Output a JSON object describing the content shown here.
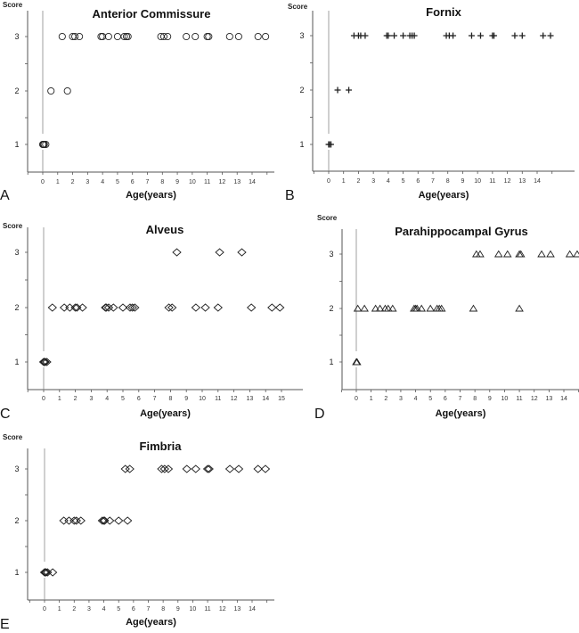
{
  "chart_data": [
    {
      "type": "scatter",
      "panel": "A",
      "title": "Anterior Commissure",
      "xlabel": "Age(years)",
      "ylabel": "Score",
      "marker": "circle",
      "xlim": [
        -1,
        15
      ],
      "xticks": [
        0,
        1,
        2,
        3,
        4,
        5,
        6,
        7,
        8,
        9,
        10,
        11,
        12,
        13,
        14
      ],
      "yticks": [
        1,
        2,
        3
      ],
      "points": {
        "1": [
          0,
          0.05,
          0.1,
          0.2
        ],
        "2": [
          0.55,
          1.65
        ],
        "3": [
          1.3,
          2.0,
          2.15,
          2.45,
          3.9,
          4.0,
          4.4,
          5.0,
          5.45,
          5.6,
          5.7,
          7.9,
          8.1,
          8.35,
          9.6,
          10.2,
          11.0,
          11.1,
          12.5,
          13.1,
          14.4,
          14.9
        ]
      }
    },
    {
      "type": "scatter",
      "panel": "B",
      "title": "Fornix",
      "xlabel": "Age(years)",
      "ylabel": "Score",
      "marker": "plus",
      "xlim": [
        -1,
        15
      ],
      "xticks": [
        0,
        1,
        2,
        3,
        4,
        5,
        6,
        7,
        8,
        9,
        10,
        11,
        12,
        13,
        14
      ],
      "yticks": [
        1,
        2,
        3
      ],
      "points": {
        "1": [
          0,
          0.05,
          0.15
        ],
        "2": [
          0.6,
          1.35
        ],
        "3": [
          1.7,
          2.0,
          2.15,
          2.45,
          3.9,
          4.0,
          4.4,
          5.0,
          5.45,
          5.6,
          5.75,
          7.9,
          8.1,
          8.35,
          9.6,
          10.2,
          11.0,
          11.1,
          12.5,
          13.0,
          14.4,
          14.9
        ]
      }
    },
    {
      "type": "scatter",
      "panel": "C",
      "title": "Alveus",
      "xlabel": "Age(years)",
      "ylabel": "Score",
      "marker": "diamond",
      "xlim": [
        -1,
        15.2
      ],
      "xticks": [
        0,
        1,
        2,
        3,
        4,
        5,
        6,
        7,
        8,
        9,
        10,
        11,
        12,
        13,
        14,
        15
      ],
      "yticks": [
        1,
        2,
        3
      ],
      "points": {
        "1": [
          0,
          0.05,
          0.1,
          0.2
        ],
        "2": [
          0.55,
          1.3,
          1.65,
          2.0,
          2.1,
          2.45,
          3.9,
          3.95,
          4.1,
          4.4,
          5.0,
          5.45,
          5.6,
          5.75,
          7.9,
          8.1,
          9.6,
          10.2,
          11.0,
          13.1,
          14.4,
          14.9
        ],
        "3": [
          8.4,
          11.1,
          12.5
        ]
      }
    },
    {
      "type": "scatter",
      "panel": "D",
      "title": "Parahippocampal Gyrus",
      "xlabel": "Age(years)",
      "ylabel": "Score",
      "marker": "triangle",
      "xlim": [
        -1,
        15
      ],
      "xticks": [
        0,
        1,
        2,
        3,
        4,
        5,
        6,
        7,
        8,
        9,
        10,
        11,
        12,
        13,
        14
      ],
      "yticks": [
        1,
        2,
        3
      ],
      "points": {
        "1": [
          0,
          0.05
        ],
        "2": [
          0.1,
          0.55,
          1.3,
          1.6,
          1.95,
          2.15,
          2.45,
          3.9,
          4.0,
          4.1,
          4.4,
          5.0,
          5.45,
          5.6,
          5.75,
          7.9,
          11.0
        ],
        "3": [
          8.1,
          8.35,
          9.6,
          10.2,
          11.0,
          11.1,
          12.5,
          13.1,
          14.4,
          14.9
        ]
      }
    },
    {
      "type": "scatter",
      "panel": "E",
      "title": "Fimbria",
      "xlabel": "Age(years)",
      "ylabel": "Score",
      "marker": "diamond",
      "xlim": [
        -1,
        15
      ],
      "xticks": [
        0,
        1,
        2,
        3,
        4,
        5,
        6,
        7,
        8,
        9,
        10,
        11,
        12,
        13,
        14
      ],
      "yticks": [
        1,
        2,
        3
      ],
      "points": {
        "1": [
          0,
          0.05,
          0.1,
          0.2,
          0.55
        ],
        "2": [
          1.3,
          1.65,
          2.0,
          2.15,
          2.45,
          3.9,
          4.0,
          4.05,
          4.4,
          5.0,
          5.6
        ],
        "3": [
          5.45,
          5.75,
          7.9,
          8.1,
          8.35,
          9.6,
          10.2,
          11.0,
          11.1,
          12.5,
          13.1,
          14.4,
          14.9
        ]
      }
    }
  ]
}
